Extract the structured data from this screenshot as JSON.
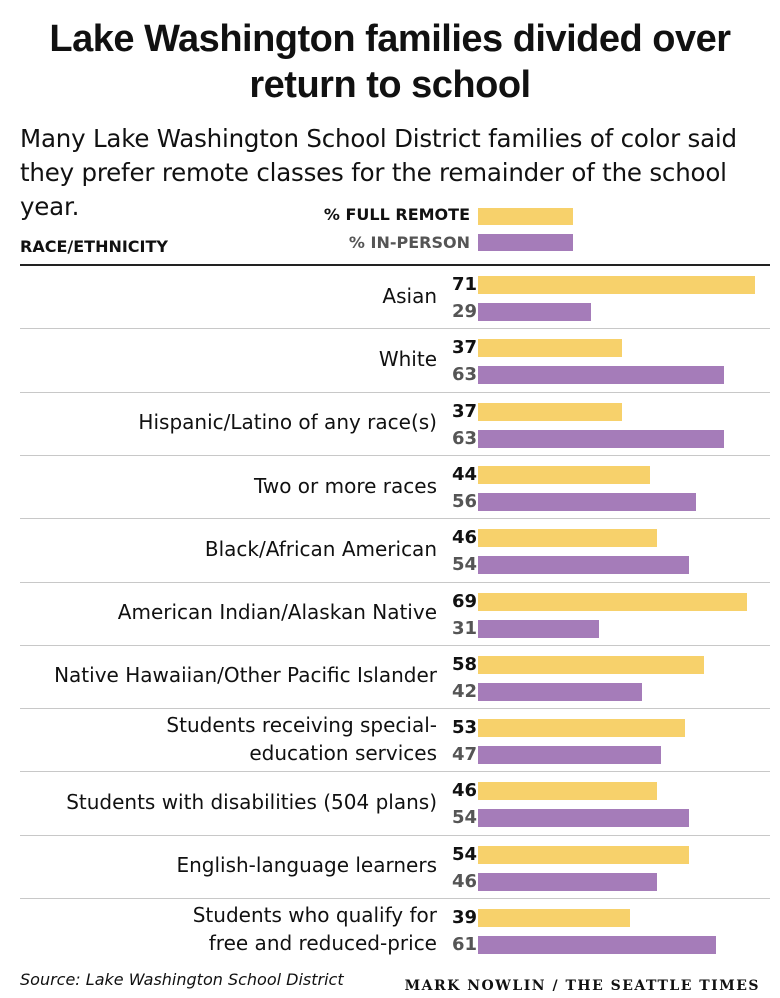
{
  "chart_data": {
    "type": "bar",
    "orientation": "horizontal",
    "title": "Lake Washington families divided over return to school",
    "subtitle": "Many Lake Washington School District families of color said they prefer remote classes for the remainder of the school year.",
    "column_header": "RACE/ETHNICITY",
    "categories": [
      [
        "Asian"
      ],
      [
        "White"
      ],
      [
        "Hispanic/Latino of any race(s)"
      ],
      [
        "Two or more races"
      ],
      [
        "Black/African American"
      ],
      [
        "American Indian/Alaskan Native"
      ],
      [
        "Native Hawaiian/Other Pacific Islander"
      ],
      [
        "Students receiving special-",
        "education services"
      ],
      [
        "Students with disabilities (504 plans)"
      ],
      [
        "English-language learners"
      ],
      [
        "Students who qualify for",
        "free and reduced-price"
      ]
    ],
    "series": [
      {
        "name": "% FULL REMOTE",
        "color": "#f7d16b",
        "values": [
          71,
          37,
          37,
          44,
          46,
          69,
          58,
          53,
          46,
          54,
          39
        ]
      },
      {
        "name": "% IN-PERSON",
        "color": "#a57cb9",
        "values": [
          29,
          63,
          63,
          56,
          54,
          31,
          42,
          47,
          54,
          46,
          61
        ]
      }
    ],
    "xlim": [
      0,
      71
    ],
    "grid": false,
    "legend_placement": "top"
  },
  "source": "Source: Lake Washington School District",
  "credit": "MARK NOWLIN / THE SEATTLE TIMES"
}
